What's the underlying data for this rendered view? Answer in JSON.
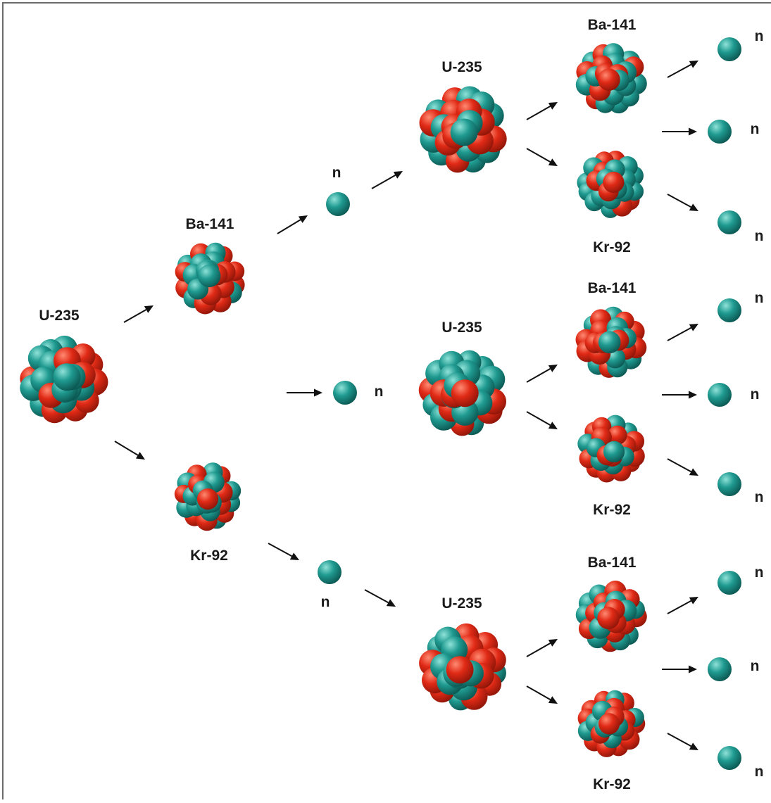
{
  "colors": {
    "proton": "#e02a16",
    "proton_dark": "#8c1508",
    "proton_light": "#ff8a72",
    "neutron": "#1f9a90",
    "neutron_dark": "#0b5550",
    "neutron_light": "#8fe2d8",
    "arrow": "#111111",
    "text": "#1a1a1a",
    "border": "#6b6b6b"
  },
  "labels": {
    "u235": "U-235",
    "ba141": "Ba-141",
    "kr92": "Kr-92",
    "neutron": "n"
  },
  "diagram": {
    "generations": [
      {
        "nuclei": [
          "U-235"
        ]
      },
      {
        "nuclei": [
          "Ba-141",
          "Kr-92"
        ],
        "released_neutrons": 3
      },
      {
        "nuclei": [
          "U-235",
          "U-235",
          "U-235"
        ]
      },
      {
        "nuclei": [
          "Ba-141",
          "Kr-92",
          "Ba-141",
          "Kr-92",
          "Ba-141",
          "Kr-92"
        ],
        "released_neutrons": 9
      }
    ]
  }
}
